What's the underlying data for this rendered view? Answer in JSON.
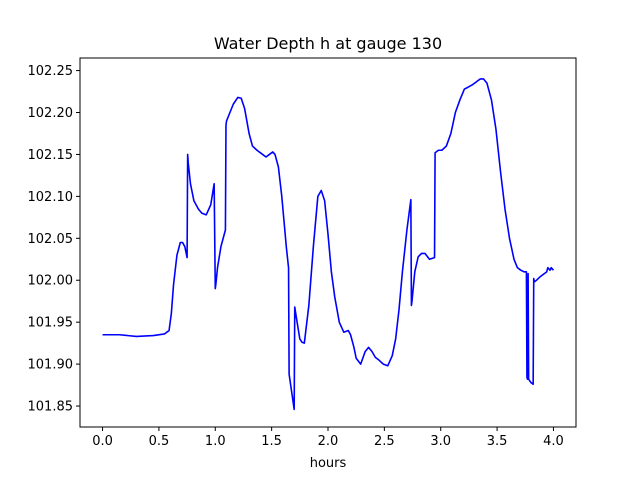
{
  "chart_data": {
    "type": "line",
    "title": "Water Depth h at gauge 130",
    "xlabel": "hours",
    "ylabel": "",
    "xlim": [
      -0.2,
      4.2
    ],
    "ylim": [
      101.825,
      102.265
    ],
    "xticks": [
      0.0,
      0.5,
      1.0,
      1.5,
      2.0,
      2.5,
      3.0,
      3.5,
      4.0
    ],
    "xtick_labels": [
      "0.0",
      "0.5",
      "1.0",
      "1.5",
      "2.0",
      "2.5",
      "3.0",
      "3.5",
      "4.0"
    ],
    "yticks": [
      101.85,
      101.9,
      101.95,
      102.0,
      102.05,
      102.1,
      102.15,
      102.2,
      102.25
    ],
    "ytick_labels": [
      "101.85",
      "101.90",
      "101.95",
      "102.00",
      "102.05",
      "102.10",
      "102.15",
      "102.20",
      "102.25"
    ],
    "grid": false,
    "legend": "none",
    "series": [
      {
        "color": "#0000ff",
        "x": [
          0.0,
          0.15,
          0.3,
          0.45,
          0.55,
          0.59,
          0.61,
          0.63,
          0.66,
          0.69,
          0.71,
          0.73,
          0.75,
          0.755,
          0.76,
          0.78,
          0.81,
          0.85,
          0.88,
          0.92,
          0.96,
          0.99,
          1.0,
          1.005,
          1.02,
          1.05,
          1.08,
          1.09,
          1.095,
          1.1,
          1.13,
          1.16,
          1.2,
          1.23,
          1.26,
          1.3,
          1.33,
          1.37,
          1.42,
          1.45,
          1.48,
          1.51,
          1.53,
          1.56,
          1.59,
          1.61,
          1.63,
          1.65,
          1.655,
          1.7,
          1.705,
          1.72,
          1.75,
          1.77,
          1.79,
          1.83,
          1.87,
          1.91,
          1.94,
          1.97,
          2.0,
          2.03,
          2.06,
          2.1,
          2.14,
          2.18,
          2.2,
          2.23,
          2.25,
          2.29,
          2.33,
          2.36,
          2.39,
          2.42,
          2.45,
          2.49,
          2.53,
          2.57,
          2.6,
          2.63,
          2.66,
          2.7,
          2.735,
          2.74,
          2.745,
          2.77,
          2.8,
          2.83,
          2.86,
          2.9,
          2.945,
          2.95,
          2.98,
          3.01,
          3.05,
          3.09,
          3.13,
          3.17,
          3.21,
          3.24,
          3.28,
          3.32,
          3.35,
          3.38,
          3.41,
          3.45,
          3.49,
          3.53,
          3.57,
          3.61,
          3.65,
          3.68,
          3.71,
          3.74,
          3.76,
          3.765,
          3.77,
          3.775,
          3.78,
          3.8,
          3.82,
          3.825,
          3.83,
          3.85,
          3.88,
          3.91,
          3.94,
          3.95,
          3.97,
          3.98,
          4.0
        ],
        "y": [
          101.935,
          101.935,
          101.933,
          101.934,
          101.936,
          101.94,
          101.96,
          101.995,
          102.03,
          102.045,
          102.045,
          102.04,
          102.027,
          102.15,
          102.14,
          102.115,
          102.095,
          102.085,
          102.08,
          102.078,
          102.09,
          102.115,
          101.99,
          101.995,
          102.015,
          102.04,
          102.055,
          102.06,
          102.185,
          102.19,
          102.2,
          102.21,
          102.218,
          102.217,
          102.205,
          102.175,
          102.16,
          102.155,
          102.15,
          102.147,
          102.15,
          102.153,
          102.15,
          102.135,
          102.1,
          102.07,
          102.04,
          102.015,
          101.888,
          101.846,
          101.968,
          101.955,
          101.93,
          101.926,
          101.925,
          101.97,
          102.04,
          102.1,
          102.107,
          102.095,
          102.055,
          102.01,
          101.98,
          101.95,
          101.938,
          101.94,
          101.935,
          101.92,
          101.907,
          101.9,
          101.915,
          101.92,
          101.915,
          101.908,
          101.905,
          101.9,
          101.898,
          101.91,
          101.93,
          101.965,
          102.01,
          102.06,
          102.096,
          101.97,
          101.975,
          102.01,
          102.028,
          102.032,
          102.032,
          102.025,
          102.027,
          102.152,
          102.155,
          102.155,
          102.16,
          102.175,
          102.2,
          102.215,
          102.228,
          102.23,
          102.233,
          102.237,
          102.24,
          102.24,
          102.235,
          102.215,
          102.18,
          102.13,
          102.085,
          102.05,
          102.025,
          102.015,
          102.012,
          102.01,
          102.01,
          101.884,
          101.882,
          102.008,
          101.882,
          101.878,
          101.876,
          102.002,
          101.998,
          102.0,
          102.004,
          102.007,
          102.01,
          102.015,
          102.012,
          102.015,
          102.012
        ]
      }
    ]
  }
}
